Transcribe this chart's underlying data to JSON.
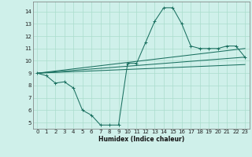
{
  "xlabel": "Humidex (Indice chaleur)",
  "background_color": "#cff0ea",
  "grid_color": "#aaddcc",
  "line_color": "#1a7060",
  "xlim": [
    -0.5,
    23.5
  ],
  "ylim": [
    4.5,
    14.8
  ],
  "xticks": [
    0,
    1,
    2,
    3,
    4,
    5,
    6,
    7,
    8,
    9,
    10,
    11,
    12,
    13,
    14,
    15,
    16,
    17,
    18,
    19,
    20,
    21,
    22,
    23
  ],
  "yticks": [
    5,
    6,
    7,
    8,
    9,
    10,
    11,
    12,
    13,
    14
  ],
  "line1_x": [
    0,
    1,
    2,
    3,
    4,
    5,
    6,
    7,
    8,
    9,
    10,
    11,
    12,
    13,
    14,
    15,
    16,
    17,
    18,
    19,
    20,
    21,
    22,
    23
  ],
  "line1_y": [
    9.0,
    8.8,
    8.2,
    8.3,
    7.8,
    6.0,
    5.6,
    4.8,
    4.8,
    4.8,
    9.8,
    9.8,
    11.5,
    13.2,
    14.3,
    14.3,
    13.0,
    11.2,
    11.0,
    11.0,
    11.0,
    11.2,
    11.2,
    10.3
  ],
  "line2_x": [
    0,
    23
  ],
  "line2_y": [
    9.0,
    9.7
  ],
  "line3_x": [
    0,
    23
  ],
  "line3_y": [
    9.0,
    10.3
  ],
  "line4_x": [
    0,
    23
  ],
  "line4_y": [
    9.0,
    11.0
  ]
}
